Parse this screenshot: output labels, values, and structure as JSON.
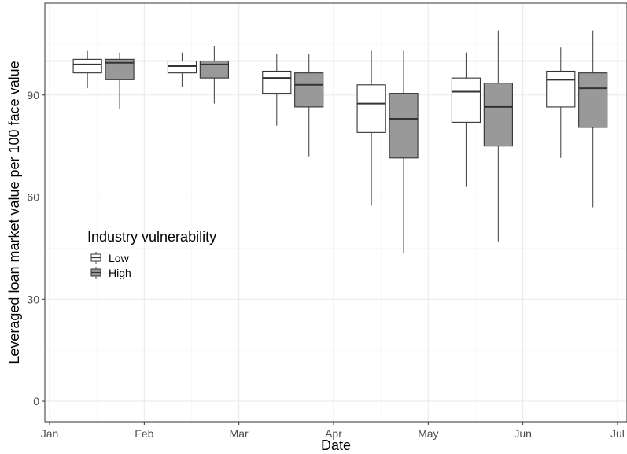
{
  "chart_data": {
    "type": "box",
    "xlabel": "Date",
    "ylabel": "Leveraged loan market value per 100 face value",
    "x_ticks": [
      "Jan",
      "Feb",
      "Mar",
      "Apr",
      "May",
      "Jun",
      "Jul"
    ],
    "x_tick_months": [
      1,
      2,
      3,
      4,
      5,
      6,
      7
    ],
    "xlim_months": [
      0.95,
      7.1
    ],
    "y_ticks": [
      0,
      30,
      60,
      90
    ],
    "ylim": [
      -6,
      117
    ],
    "reference_line": 100,
    "grid": true,
    "legend": {
      "title": "Industry vulnerability",
      "position": "left-middle",
      "entries": [
        "Low",
        "High"
      ]
    },
    "series": [
      {
        "name": "Low",
        "color": "#ffffff",
        "boxes": [
          {
            "x": 1.4,
            "whisker_low": 92,
            "q1": 96.5,
            "median": 99,
            "q3": 100.5,
            "whisker_high": 103
          },
          {
            "x": 2.4,
            "whisker_low": 92.5,
            "q1": 96.5,
            "median": 98.5,
            "q3": 100,
            "whisker_high": 102.5
          },
          {
            "x": 3.4,
            "whisker_low": 81,
            "q1": 90.5,
            "median": 95,
            "q3": 97,
            "whisker_high": 102
          },
          {
            "x": 4.4,
            "whisker_low": 57.5,
            "q1": 79,
            "median": 87.5,
            "q3": 93,
            "whisker_high": 103
          },
          {
            "x": 5.4,
            "whisker_low": 63,
            "q1": 82,
            "median": 91,
            "q3": 95,
            "whisker_high": 102.5
          },
          {
            "x": 6.4,
            "whisker_low": 71.5,
            "q1": 86.5,
            "median": 94.5,
            "q3": 97,
            "whisker_high": 104
          }
        ]
      },
      {
        "name": "High",
        "color": "#999999",
        "boxes": [
          {
            "x": 1.74,
            "whisker_low": 86,
            "q1": 94.5,
            "median": 99.5,
            "q3": 100.5,
            "whisker_high": 102.5
          },
          {
            "x": 2.74,
            "whisker_low": 87.5,
            "q1": 95,
            "median": 99,
            "q3": 100,
            "whisker_high": 104.5
          },
          {
            "x": 3.74,
            "whisker_low": 72,
            "q1": 86.5,
            "median": 93,
            "q3": 96.5,
            "whisker_high": 102
          },
          {
            "x": 4.74,
            "whisker_low": 43.5,
            "q1": 71.5,
            "median": 83,
            "q3": 90.5,
            "whisker_high": 103
          },
          {
            "x": 5.74,
            "whisker_low": 47,
            "q1": 75,
            "median": 86.5,
            "q3": 93.5,
            "whisker_high": 109
          },
          {
            "x": 6.74,
            "whisker_low": 57,
            "q1": 80.5,
            "median": 92,
            "q3": 96.5,
            "whisker_high": 109
          }
        ]
      }
    ]
  }
}
